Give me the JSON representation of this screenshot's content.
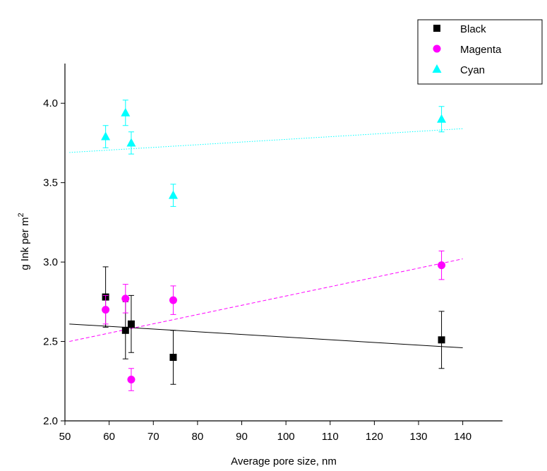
{
  "chart_data": {
    "type": "scatter",
    "x_label": "Average pore size, nm",
    "y_label": "g Ink per m",
    "y_label_superscript": "2",
    "xlim": [
      50,
      149
    ],
    "ylim": [
      2.0,
      4.25
    ],
    "xticks": [
      50,
      60,
      70,
      80,
      90,
      100,
      110,
      120,
      130,
      140
    ],
    "yticks": [
      {
        "value": 2.0,
        "label": "2.0"
      },
      {
        "value": 2.5,
        "label": "2.5"
      },
      {
        "value": 3.0,
        "label": "3.0"
      },
      {
        "value": 3.5,
        "label": "3.5"
      },
      {
        "value": 4.0,
        "label": "4.0"
      }
    ],
    "legend": "top-right",
    "series": [
      {
        "name": "Black",
        "color": "#000000",
        "marker": "square",
        "dash": "solid",
        "x": [
          59.2,
          63.7,
          65.0,
          74.5,
          135.2
        ],
        "values": [
          2.78,
          2.57,
          2.61,
          2.4,
          2.51
        ],
        "errors": [
          0.19,
          0.18,
          0.18,
          0.17,
          0.18
        ],
        "fit": {
          "x": [
            51,
            140
          ],
          "y": [
            2.61,
            2.46
          ]
        }
      },
      {
        "name": "Magenta",
        "color": "#ff00ff",
        "marker": "circle",
        "dash": "dashed",
        "x": [
          59.2,
          63.7,
          65.0,
          74.5,
          135.2
        ],
        "values": [
          2.7,
          2.77,
          2.26,
          2.76,
          2.98
        ],
        "errors": [
          0.09,
          0.09,
          0.07,
          0.09,
          0.09
        ],
        "fit": {
          "x": [
            51,
            140
          ],
          "y": [
            2.5,
            3.02
          ]
        }
      },
      {
        "name": "Cyan",
        "color": "#00ffff",
        "marker": "triangle",
        "dash": "dotted",
        "x": [
          59.2,
          63.7,
          65.0,
          74.5,
          135.2
        ],
        "values": [
          3.79,
          3.94,
          3.75,
          3.42,
          3.9
        ],
        "errors": [
          0.07,
          0.08,
          0.07,
          0.07,
          0.08
        ],
        "fit": {
          "x": [
            51,
            140
          ],
          "y": [
            3.69,
            3.84
          ]
        }
      }
    ]
  }
}
